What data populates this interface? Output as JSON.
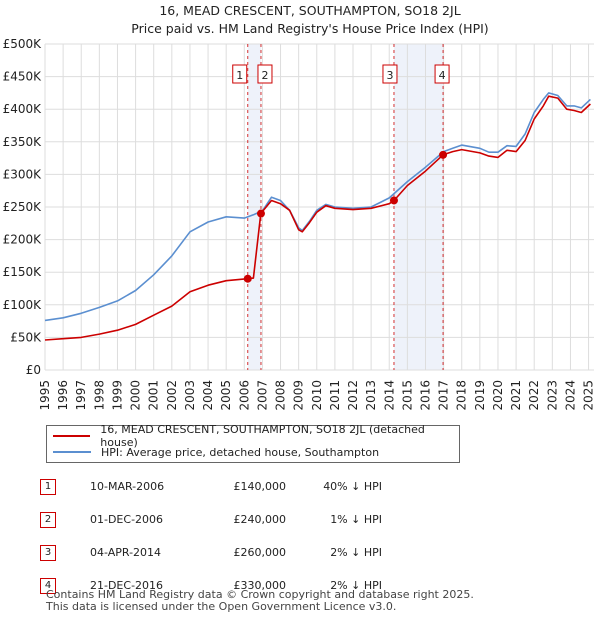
{
  "chart_data": {
    "type": "line",
    "title": "16, MEAD CRESCENT, SOUTHAMPTON, SO18 2JL",
    "subtitle": "Price paid vs. HM Land Registry's House Price Index (HPI)",
    "xlim": [
      1995,
      2025.3
    ],
    "ylim": [
      0,
      500000
    ],
    "x_ticks": [
      1995,
      1996,
      1997,
      1998,
      1999,
      2000,
      2001,
      2002,
      2003,
      2004,
      2005,
      2006,
      2007,
      2008,
      2009,
      2010,
      2011,
      2012,
      2013,
      2014,
      2015,
      2016,
      2017,
      2018,
      2019,
      2020,
      2021,
      2022,
      2023,
      2024,
      2025
    ],
    "y_ticks": [
      {
        "value": 0,
        "label": "£0"
      },
      {
        "value": 50000,
        "label": "£50K"
      },
      {
        "value": 100000,
        "label": "£100K"
      },
      {
        "value": 150000,
        "label": "£150K"
      },
      {
        "value": 200000,
        "label": "£200K"
      },
      {
        "value": 250000,
        "label": "£250K"
      },
      {
        "value": 300000,
        "label": "£300K"
      },
      {
        "value": 350000,
        "label": "£350K"
      },
      {
        "value": 400000,
        "label": "£400K"
      },
      {
        "value": 450000,
        "label": "£450K"
      },
      {
        "value": 500000,
        "label": "£500K"
      }
    ],
    "series": [
      {
        "name": "16, MEAD CRESCENT, SOUTHAMPTON, SO18 2JL (detached house)",
        "color": "#cc0000",
        "x": [
          1995,
          1996,
          1997,
          1998,
          1999,
          2000,
          2001,
          2002,
          2003,
          2004,
          2005,
          2006.19,
          2006.5,
          2006.91,
          2007.5,
          2008,
          2008.5,
          2009,
          2009.2,
          2009.6,
          2010,
          2010.5,
          2011,
          2012,
          2013,
          2014,
          2014.26,
          2015,
          2016,
          2016.97,
          2017.5,
          2018,
          2019,
          2019.5,
          2020,
          2020.5,
          2021,
          2021.5,
          2022,
          2022.5,
          2022.8,
          2023.3,
          2023.8,
          2024.2,
          2024.6,
          2025.1
        ],
        "y": [
          46000,
          48000,
          50000,
          55000,
          61000,
          70000,
          84000,
          98000,
          120000,
          130000,
          137000,
          140000,
          141000,
          240000,
          260000,
          255000,
          245000,
          215000,
          212000,
          226000,
          242000,
          252000,
          248000,
          246000,
          248000,
          255000,
          260000,
          283000,
          305000,
          330000,
          335000,
          338000,
          333000,
          328000,
          326000,
          337000,
          335000,
          352000,
          385000,
          405000,
          420000,
          417000,
          400000,
          398000,
          395000,
          408000
        ]
      },
      {
        "name": "HPI: Average price, detached house, Southampton",
        "color": "#5b8fd0",
        "x": [
          1995,
          1996,
          1997,
          1998,
          1999,
          2000,
          2001,
          2002,
          2003,
          2004,
          2005,
          2006,
          2006.5,
          2007,
          2007.5,
          2008,
          2008.5,
          2009,
          2009.2,
          2009.6,
          2010,
          2010.5,
          2011,
          2012,
          2013,
          2014,
          2015,
          2016,
          2017,
          2017.5,
          2018,
          2019,
          2019.5,
          2020,
          2020.5,
          2021,
          2021.5,
          2022,
          2022.5,
          2022.8,
          2023.3,
          2023.8,
          2024.2,
          2024.6,
          2025.1
        ],
        "y": [
          76000,
          80000,
          87000,
          96000,
          106000,
          122000,
          146000,
          175000,
          212000,
          227000,
          235000,
          233000,
          238000,
          244000,
          265000,
          260000,
          245000,
          218000,
          214000,
          228000,
          245000,
          254000,
          250000,
          248000,
          250000,
          264000,
          289000,
          311000,
          335000,
          340000,
          345000,
          340000,
          334000,
          334000,
          344000,
          343000,
          362000,
          395000,
          415000,
          425000,
          421000,
          405000,
          405000,
          402000,
          415000
        ]
      }
    ],
    "sales": [
      {
        "label": "1",
        "x": 2006.19,
        "y": 140000
      },
      {
        "label": "2",
        "x": 2006.92,
        "y": 240000
      },
      {
        "label": "3",
        "x": 2014.26,
        "y": 260000
      },
      {
        "label": "4",
        "x": 2016.97,
        "y": 330000
      }
    ],
    "shaded_spans": [
      [
        2006.19,
        2006.92
      ],
      [
        2014.26,
        2016.97
      ]
    ]
  },
  "legend": {
    "property": "16, MEAD CRESCENT, SOUTHAMPTON, SO18 2JL (detached house)",
    "hpi": "HPI: Average price, detached house, Southampton"
  },
  "transactions": [
    {
      "num": "1",
      "date": "10-MAR-2006",
      "price": "£140,000",
      "hpi": "40% ↓ HPI"
    },
    {
      "num": "2",
      "date": "01-DEC-2006",
      "price": "£240,000",
      "hpi": "1% ↓ HPI"
    },
    {
      "num": "3",
      "date": "04-APR-2014",
      "price": "£260,000",
      "hpi": "2% ↓ HPI"
    },
    {
      "num": "4",
      "date": "21-DEC-2016",
      "price": "£330,000",
      "hpi": "2% ↓ HPI"
    }
  ],
  "footer": {
    "line1": "Contains HM Land Registry data © Crown copyright and database right 2025.",
    "line2": "This data is licensed under the Open Government Licence v3.0."
  },
  "colors": {
    "property": "#cc0000",
    "hpi": "#5b8fd0",
    "grid": "#dddddd",
    "shade": "#eef2fa"
  }
}
